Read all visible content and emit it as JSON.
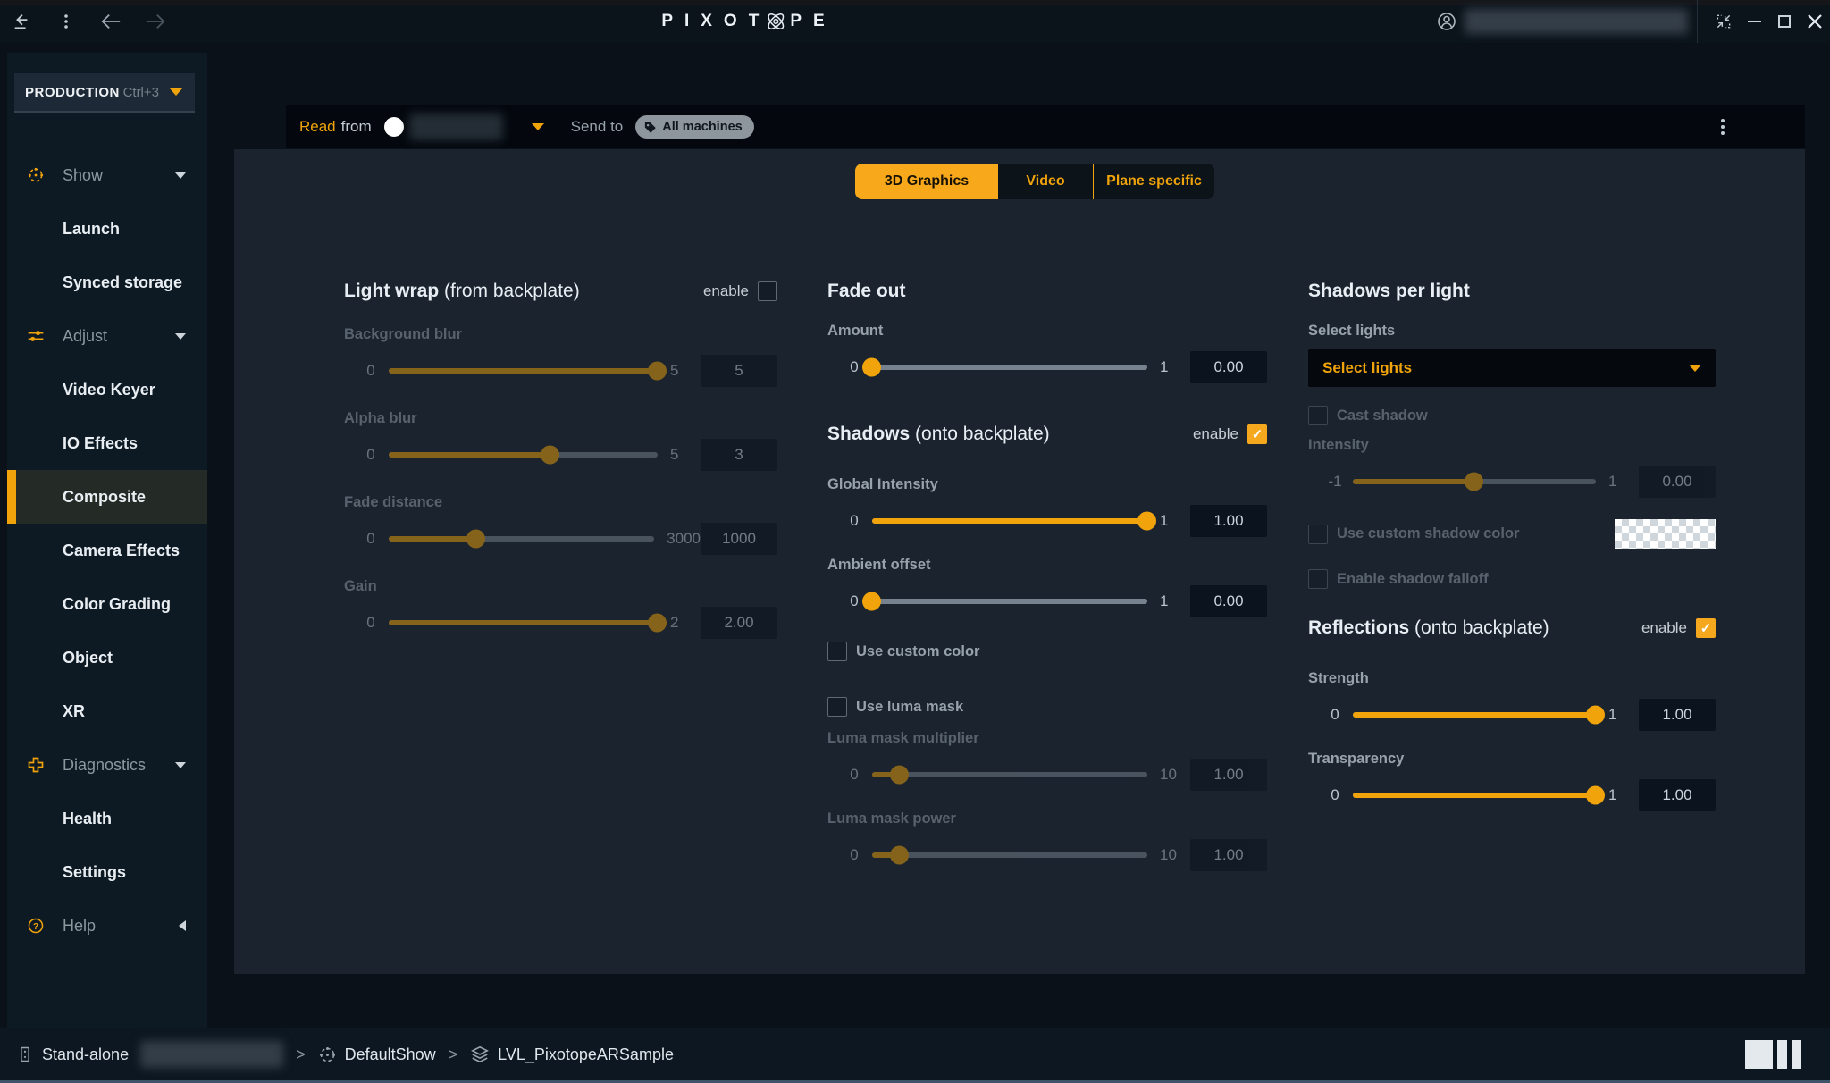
{
  "titlebar": {
    "logo_left": "PIXOT",
    "logo_right": "PE"
  },
  "sidebar": {
    "mode_label": "PRODUCTION",
    "mode_shortcut": "Ctrl+3",
    "items": [
      {
        "label": "Show"
      },
      {
        "label": "Launch"
      },
      {
        "label": "Synced storage"
      },
      {
        "label": "Adjust"
      },
      {
        "label": "Video Keyer"
      },
      {
        "label": "IO Effects"
      },
      {
        "label": "Composite"
      },
      {
        "label": "Camera Effects"
      },
      {
        "label": "Color Grading"
      },
      {
        "label": "Object"
      },
      {
        "label": "XR"
      },
      {
        "label": "Diagnostics"
      },
      {
        "label": "Health"
      },
      {
        "label": "Settings"
      },
      {
        "label": "Help"
      }
    ]
  },
  "readbar": {
    "read": "Read",
    "from": "from",
    "send_to": "Send to",
    "all_machines": "All machines"
  },
  "tabs": [
    {
      "label": "3D Graphics",
      "active": true
    },
    {
      "label": "Video",
      "active": false
    },
    {
      "label": "Plane specific",
      "active": false
    }
  ],
  "light_wrap": {
    "title": "Light wrap",
    "subtitle": "(from backplate)",
    "enable_label": "enable",
    "enabled": false,
    "background_blur": {
      "label": "Background blur",
      "min": "0",
      "max": "5",
      "value": "5",
      "pct": 100
    },
    "alpha_blur": {
      "label": "Alpha blur",
      "min": "0",
      "max": "5",
      "value": "3",
      "pct": 60
    },
    "fade_distance": {
      "label": "Fade distance",
      "min": "0",
      "max": "3000",
      "value": "1000",
      "pct": 33
    },
    "gain": {
      "label": "Gain",
      "min": "0",
      "max": "2",
      "value": "2.00",
      "pct": 100
    }
  },
  "fade_out": {
    "title": "Fade out",
    "amount": {
      "label": "Amount",
      "min": "0",
      "max": "1",
      "value": "0.00",
      "pct": 0
    }
  },
  "shadows": {
    "title": "Shadows",
    "subtitle": "(onto backplate)",
    "enable_label": "enable",
    "enabled": true,
    "global_intensity": {
      "label": "Global Intensity",
      "min": "0",
      "max": "1",
      "value": "1.00",
      "pct": 100
    },
    "ambient_offset": {
      "label": "Ambient offset",
      "min": "0",
      "max": "1",
      "value": "0.00",
      "pct": 0
    },
    "use_custom_color": {
      "label": "Use custom color",
      "checked": false
    },
    "use_luma_mask": {
      "label": "Use luma mask",
      "checked": false
    },
    "luma_mask_multiplier": {
      "label": "Luma mask multiplier",
      "min": "0",
      "max": "10",
      "value": "1.00",
      "pct": 10
    },
    "luma_mask_power": {
      "label": "Luma mask power",
      "min": "0",
      "max": "10",
      "value": "1.00",
      "pct": 10
    }
  },
  "shadows_per_light": {
    "title": "Shadows per light",
    "select_label": "Select lights",
    "select_value": "Select lights",
    "cast_shadow": {
      "label": "Cast shadow",
      "checked": false
    },
    "intensity": {
      "label": "Intensity",
      "min": "-1",
      "max": "1",
      "value": "0.00",
      "pct": 50
    },
    "use_custom_shadow_color": {
      "label": "Use custom shadow color",
      "checked": false
    },
    "enable_shadow_falloff": {
      "label": "Enable shadow falloff",
      "checked": false
    }
  },
  "reflections": {
    "title": "Reflections",
    "subtitle": "(onto backplate)",
    "enable_label": "enable",
    "enabled": true,
    "strength": {
      "label": "Strength",
      "min": "0",
      "max": "1",
      "value": "1.00",
      "pct": 100
    },
    "transparency": {
      "label": "Transparency",
      "min": "0",
      "max": "1",
      "value": "1.00",
      "pct": 100
    }
  },
  "statusbar": {
    "machine": "Stand-alone",
    "show": "DefaultShow",
    "level": "LVL_PixotopeARSample"
  },
  "colors": {
    "accent": "#f0a30a",
    "panel": "#1a232e",
    "sidebar": "#0d1a24",
    "checked_checkbox": "#f5a81e"
  }
}
